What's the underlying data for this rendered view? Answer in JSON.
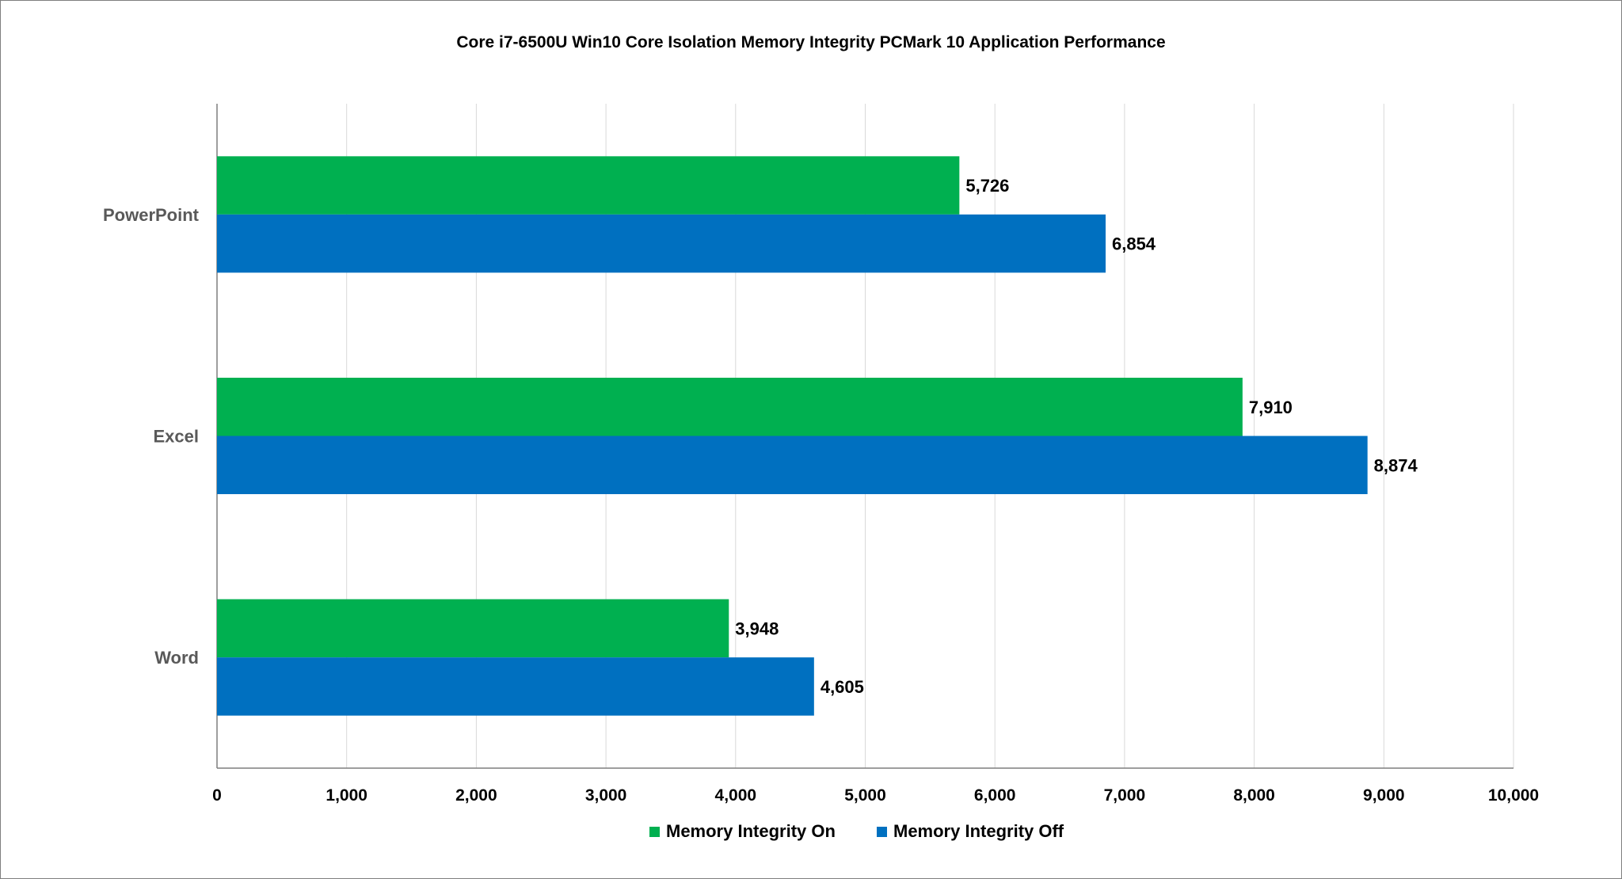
{
  "chart_data": {
    "type": "bar",
    "orientation": "horizontal",
    "title": "Core i7-6500U Win10 Core Isolation Memory Integrity PCMark  10 Application Performance",
    "categories": [
      "PowerPoint",
      "Excel",
      "Word"
    ],
    "series": [
      {
        "name": "Memory Integrity On",
        "color": "#00B050",
        "values": [
          5726,
          7910,
          3948
        ],
        "labels": [
          "5,726",
          "7,910",
          "3,948"
        ]
      },
      {
        "name": "Memory Integrity Off",
        "color": "#0070C0",
        "values": [
          6854,
          8874,
          4605
        ],
        "labels": [
          "6,854",
          "8,874",
          "4,605"
        ]
      }
    ],
    "xlim": [
      0,
      10000
    ],
    "xticks": [
      0,
      1000,
      2000,
      3000,
      4000,
      5000,
      6000,
      7000,
      8000,
      9000,
      10000
    ],
    "xtick_labels": [
      "0",
      "1,000",
      "2,000",
      "3,000",
      "4,000",
      "5,000",
      "6,000",
      "7,000",
      "8,000",
      "9,000",
      "10,000"
    ],
    "grid": "vertical",
    "legend": "bottom"
  }
}
